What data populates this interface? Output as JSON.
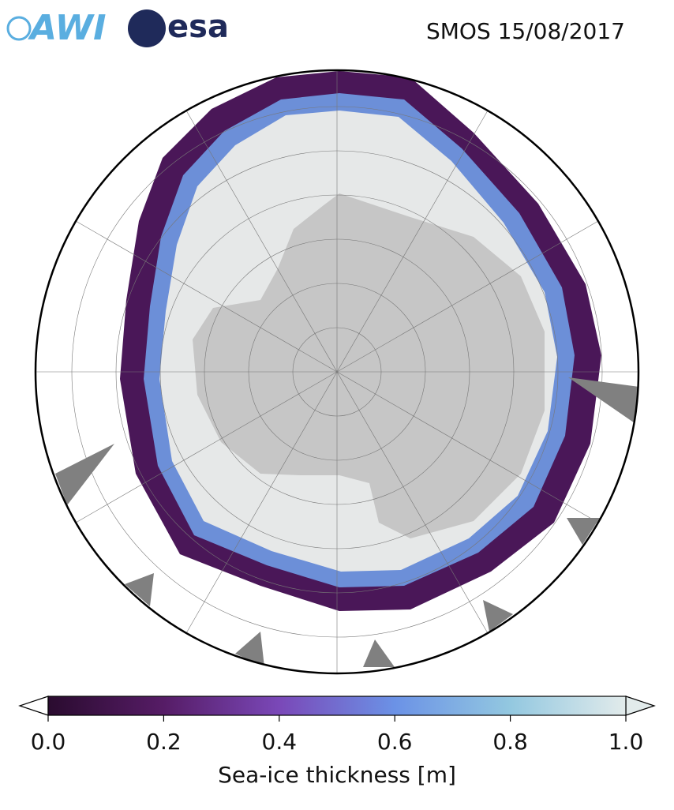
{
  "header": {
    "logos": [
      "AWI",
      "esa"
    ],
    "title": "SMOS 15/08/2017"
  },
  "colorbar": {
    "label": "Sea-ice thickness [m]",
    "lim": [
      0,
      1
    ],
    "ticks": [
      {
        "value": 0,
        "label": "0.0"
      },
      {
        "value": 0.2,
        "label": "0.2"
      },
      {
        "value": 0.4,
        "label": "0.4"
      },
      {
        "value": 0.6,
        "label": "0.6"
      },
      {
        "value": 0.8,
        "label": "0.8"
      },
      {
        "value": 1,
        "label": "1.0"
      }
    ],
    "colors": [
      "#2a0b2f",
      "#561c66",
      "#7a48b8",
      "#6b92e6",
      "#93c8e0",
      "#e2ebeb"
    ]
  }
}
